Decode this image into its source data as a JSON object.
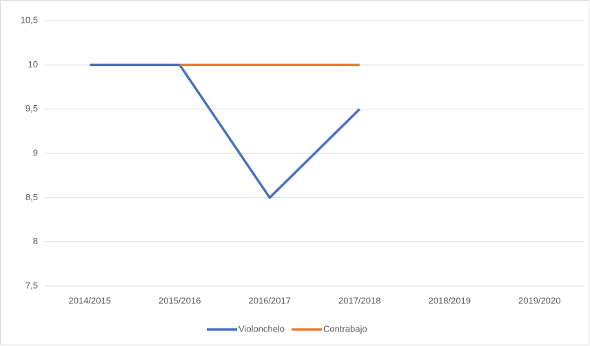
{
  "chart_data": {
    "type": "line",
    "categories": [
      "2014/2015",
      "2015/2016",
      "2016/2017",
      "2017/2018",
      "2018/2019",
      "2019/2020"
    ],
    "series": [
      {
        "name": "Violonchelo",
        "color": "#4472c4",
        "values": [
          10,
          10,
          8.5,
          9.5,
          null,
          null
        ]
      },
      {
        "name": "Contrabajo",
        "color": "#ed7d31",
        "values": [
          null,
          10,
          10,
          10,
          null,
          null
        ]
      }
    ],
    "ylim": [
      7.5,
      10.5
    ],
    "yticks": [
      {
        "value": 7.5,
        "label": "7,5"
      },
      8,
      {
        "value": 8.5,
        "label": "8,5"
      },
      9,
      {
        "value": 9.5,
        "label": "9,5"
      },
      10,
      {
        "value": 10.5,
        "label": "10,5"
      }
    ],
    "grid": true,
    "legend": "bottom"
  }
}
